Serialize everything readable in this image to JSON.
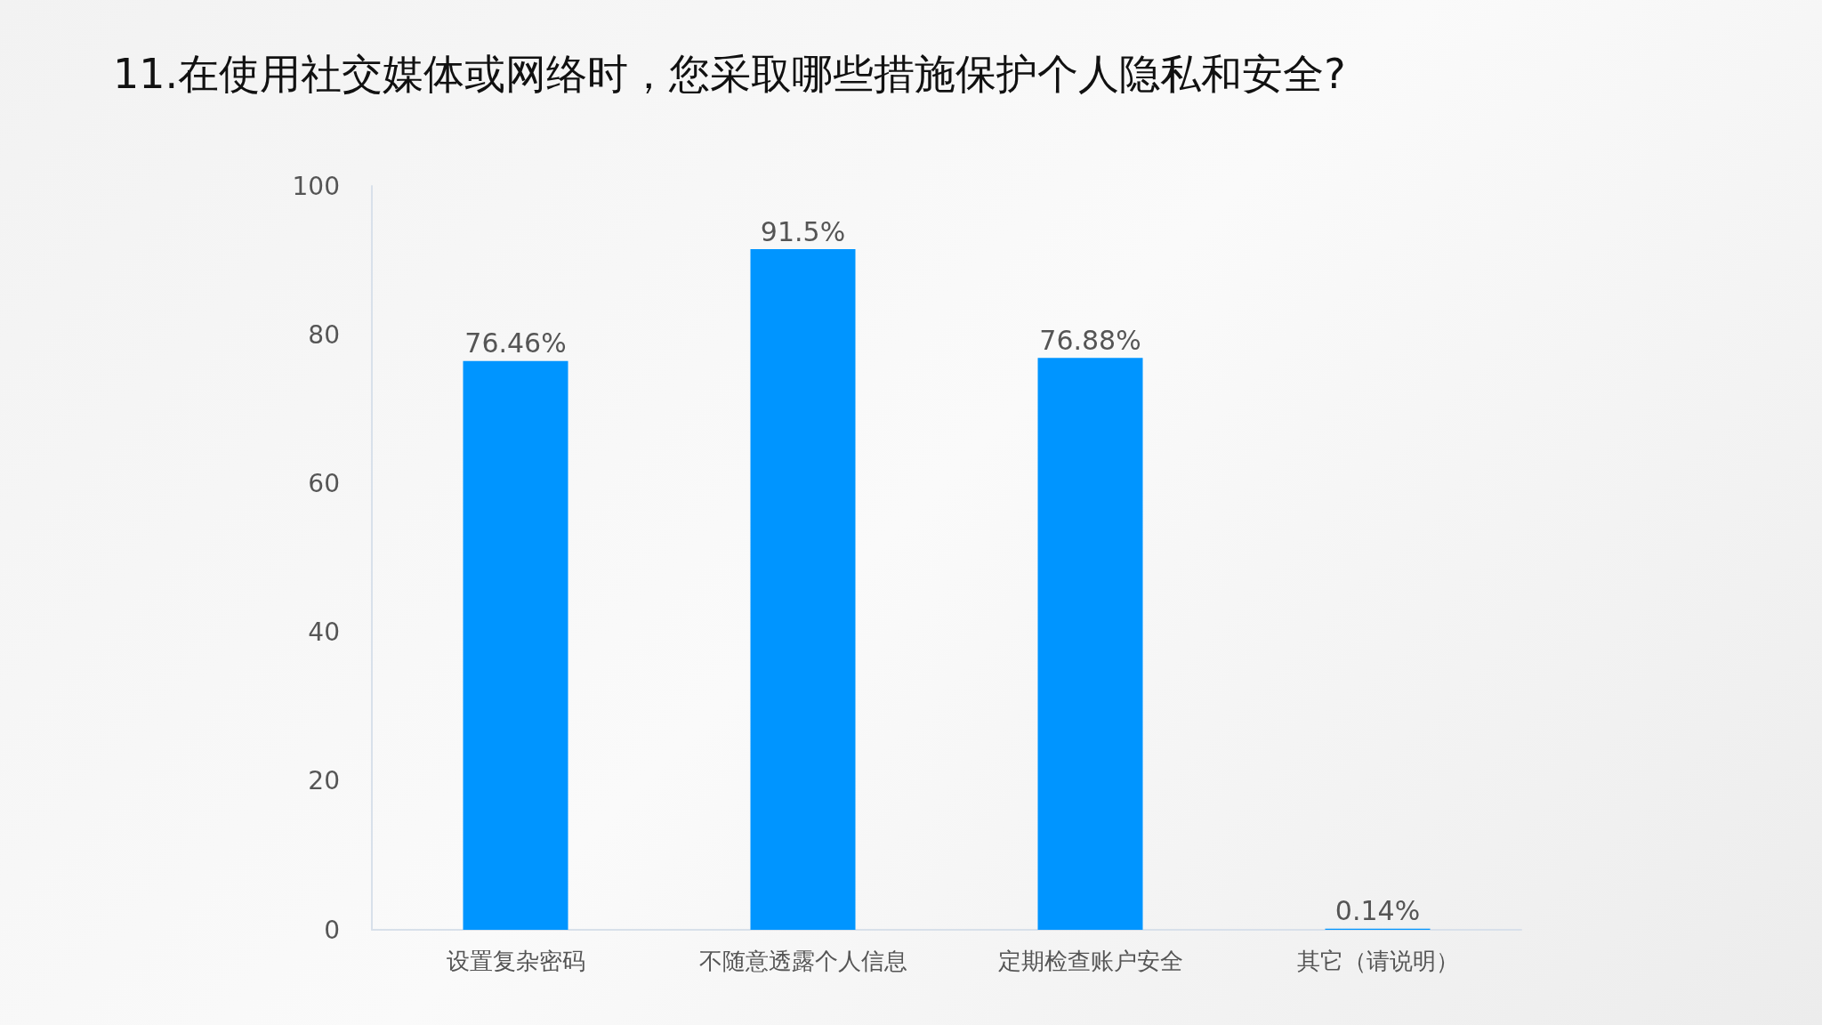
{
  "chart_data": {
    "type": "bar",
    "title": "11.在使用社交媒体或网络时，您采取哪些措施保护个人隐私和安全?",
    "categories": [
      "设置复杂密码",
      "不随意透露个人信息",
      "定期检查账户安全",
      "其它（请说明）"
    ],
    "values": [
      76.46,
      91.5,
      76.88,
      0.14
    ],
    "value_labels": [
      "76.46%",
      "91.5%",
      "76.88%",
      "0.14%"
    ],
    "color": "#0095ff",
    "ylim": [
      0,
      100
    ],
    "yticks": [
      0,
      20,
      40,
      60,
      80,
      100
    ],
    "grid": false
  }
}
